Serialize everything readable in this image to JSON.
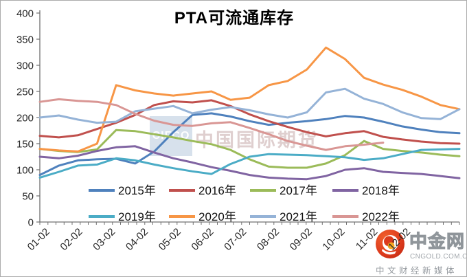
{
  "title": "PTA可流通库存",
  "watermark": {
    "logo_abbr": "CIFCO",
    "company": "中国国际期货"
  },
  "brand": {
    "name": "中金网",
    "domain": "CNGOLD.COM.CN",
    "tagline": "中文财经新媒体",
    "icon": "cngold-swirl-logo-icon",
    "accent_red": "#D93018",
    "accent_orange": "#F5A821"
  },
  "chart_data": {
    "type": "line",
    "title": "PTA可流通库存",
    "xlabel": "",
    "ylabel": "",
    "ylim": [
      0,
      400
    ],
    "y_ticks": [
      0,
      50,
      100,
      150,
      200,
      250,
      300,
      350,
      400
    ],
    "x_tick_labels": [
      "01-02",
      "02-02",
      "03-02",
      "04-02",
      "05-02",
      "06-02",
      "07-02",
      "08-02",
      "09-02",
      "10-02",
      "11-02",
      "12-02"
    ],
    "grid": false,
    "legend_position": "bottom inside plot, two rows of four",
    "sampling_note": "values estimated at 23 evenly spaced points across the year (about every 16 days); 2022 series ends early (through mid-October)",
    "series": [
      {
        "name": "2015年",
        "color": "#4F81BD",
        "values": [
          90,
          108,
          118,
          120,
          121,
          112,
          135,
          172,
          205,
          208,
          202,
          193,
          186,
          190,
          193,
          197,
          203,
          200,
          192,
          183,
          177,
          172,
          170
        ]
      },
      {
        "name": "2016年",
        "color": "#C0504D",
        "values": [
          165,
          162,
          166,
          178,
          190,
          205,
          224,
          231,
          229,
          233,
          222,
          206,
          193,
          182,
          172,
          164,
          170,
          174,
          163,
          158,
          154,
          151,
          150
        ]
      },
      {
        "name": "2017年",
        "color": "#9BBB59",
        "values": [
          140,
          136,
          134,
          139,
          176,
          174,
          168,
          162,
          155,
          149,
          138,
          120,
          106,
          104,
          104,
          112,
          128,
          155,
          140,
          136,
          133,
          129,
          126
        ]
      },
      {
        "name": "2018年",
        "color": "#8064A2",
        "values": [
          125,
          122,
          127,
          136,
          143,
          145,
          133,
          122,
          114,
          105,
          98,
          90,
          85,
          83,
          82,
          88,
          100,
          103,
          96,
          94,
          92,
          88,
          84
        ]
      },
      {
        "name": "2019年",
        "color": "#4BACC6",
        "values": [
          85,
          96,
          108,
          110,
          122,
          118,
          110,
          103,
          97,
          92,
          111,
          125,
          130,
          129,
          128,
          126,
          124,
          119,
          122,
          130,
          138,
          139,
          140
        ]
      },
      {
        "name": "2020年",
        "color": "#F79646",
        "values": [
          140,
          137,
          135,
          150,
          262,
          252,
          246,
          242,
          246,
          250,
          234,
          238,
          262,
          270,
          292,
          334,
          312,
          276,
          263,
          253,
          240,
          224,
          216
        ]
      },
      {
        "name": "2021年",
        "color": "#95B3D7",
        "values": [
          200,
          204,
          196,
          190,
          192,
          212,
          217,
          222,
          208,
          215,
          220,
          214,
          206,
          200,
          210,
          248,
          255,
          236,
          226,
          210,
          199,
          197,
          216
        ]
      },
      {
        "name": "2022年",
        "color": "#D99694",
        "values": [
          230,
          235,
          232,
          230,
          224,
          207,
          194,
          186,
          184,
          189,
          191,
          180,
          168,
          155,
          146,
          138,
          145,
          148,
          152
        ]
      }
    ]
  }
}
